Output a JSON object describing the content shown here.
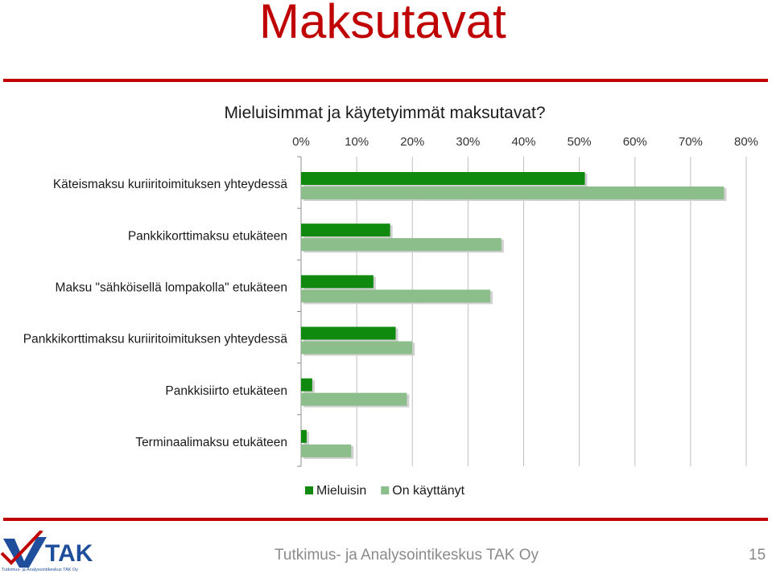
{
  "slide": {
    "title": "Maksutavat",
    "footer_org": "Tutkimus- ja Analysointikeskus TAK Oy",
    "page_number": "15",
    "logo_text": "TAK",
    "logo_subtext": "Tutkimus- ja Analysointikeskus TAK Oy"
  },
  "colors": {
    "accent": "#c00000",
    "series_preferred": "#0f8a0f",
    "series_used": "#8cbe8c",
    "grid": "#bfbfbf"
  },
  "chart_data": {
    "type": "bar",
    "orientation": "horizontal",
    "title": "Mieluisimmat ja käytetyimmät maksutavat?",
    "xlabel": "",
    "ylabel": "",
    "xlim": [
      0,
      80
    ],
    "xticks": [
      "0%",
      "10%",
      "20%",
      "30%",
      "40%",
      "50%",
      "60%",
      "70%",
      "80%"
    ],
    "xaxis_position": "top",
    "grid": true,
    "legend": "bottom",
    "categories": [
      "Käteismaksu kuriiritoimituksen yhteydessä",
      "Pankkikorttimaksu etukäteen",
      "Maksu \"sähköisellä lompakolla\" etukäteen",
      "Pankkikorttimaksu kuriiritoimituksen yhteydessä",
      "Pankkisiirto etukäteen",
      "Terminaalimaksu etukäteen"
    ],
    "series": [
      {
        "name": "Mieluisin",
        "values": [
          51,
          16,
          13,
          17,
          2,
          1
        ]
      },
      {
        "name": "On käyttänyt",
        "values": [
          76,
          36,
          34,
          20,
          19,
          9
        ]
      }
    ]
  }
}
